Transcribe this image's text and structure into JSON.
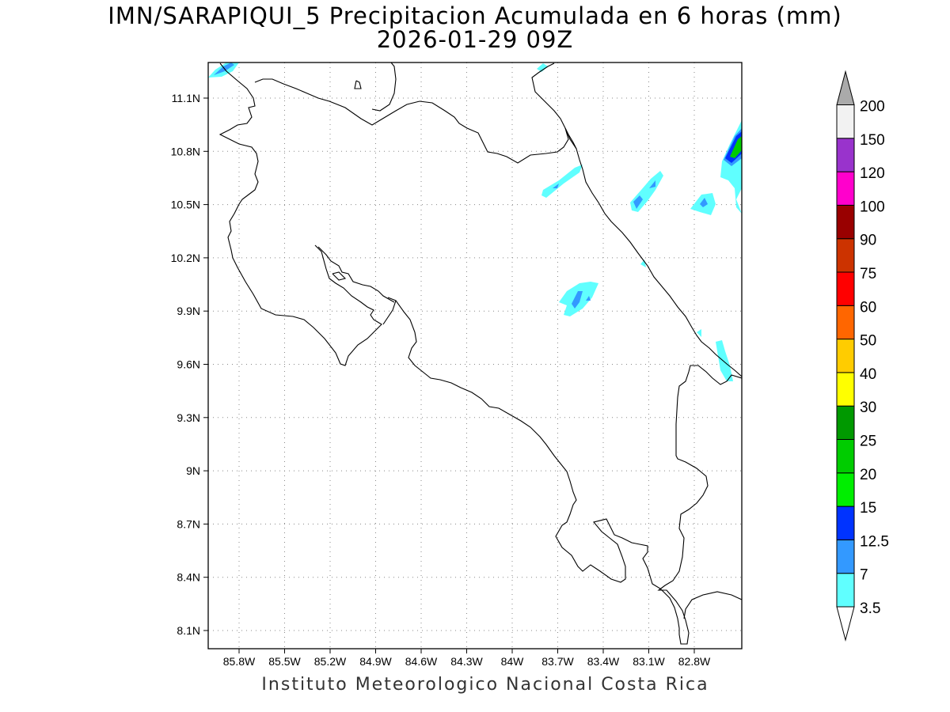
{
  "map": {
    "title": "IMN/SARAPIQUI_5 Precipitacion Acumulada en 6 horas (mm)",
    "subtitle": "2026-01-29 09Z",
    "credit": "Instituto Meteorologico Nacional Costa Rica",
    "lat_labels": [
      "11.1N",
      "10.8N",
      "10.5N",
      "10.2N",
      "9.9N",
      "9.6N",
      "9.3N",
      "9N",
      "8.7N",
      "8.4N",
      "8.1N"
    ],
    "lon_labels": [
      "85.8W",
      "85.5W",
      "85.2W",
      "84.9W",
      "84.6W",
      "84.3W",
      "84W",
      "83.7W",
      "83.4W",
      "83.1W",
      "82.8W"
    ],
    "outline_color": "#000000",
    "grid": "dotted"
  },
  "legend": {
    "levels": [
      "3.5",
      "7",
      "12.5",
      "15",
      "20",
      "25",
      "30",
      "40",
      "50",
      "60",
      "75",
      "90",
      "100",
      "120",
      "150",
      "200"
    ],
    "colors": [
      "#60ffff",
      "#3399ff",
      "#0033ff",
      "#00ee00",
      "#00cc00",
      "#009900",
      "#ffff00",
      "#ffcc00",
      "#ff6600",
      "#ff0000",
      "#cc3300",
      "#990000",
      "#ff00cc",
      "#9933cc",
      "#f2f2f2",
      "#aaaaaa"
    ]
  }
}
